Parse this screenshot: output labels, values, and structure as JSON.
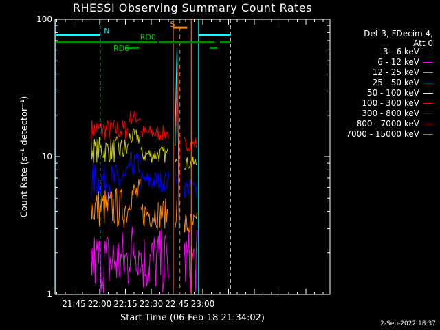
{
  "chart_data": {
    "type": "line",
    "title": "RHESSI Observing Summary Count Rates",
    "xlabel": "Start Time (06-Feb-18 21:34:02)",
    "ylabel": "Count Rate (s⁻¹ detector⁻¹)",
    "yscale": "log",
    "ylim": [
      1,
      100
    ],
    "yticks": [
      "1",
      "10",
      "100"
    ],
    "xlim_minutes": [
      34.0,
      194.0
    ],
    "xticks": [
      {
        "label": "21:45",
        "t": 45
      },
      {
        "label": "22:00",
        "t": 60
      },
      {
        "label": "22:15",
        "t": 75
      },
      {
        "label": "22:30",
        "t": 90
      },
      {
        "label": "22:45",
        "t": 105
      },
      {
        "label": "23:00",
        "t": 120
      }
    ],
    "legend_header": [
      "Det 3, FDecim 4,",
      "Att 0"
    ],
    "series": [
      {
        "name": "3 - 6 keV",
        "color": "#ffffff"
      },
      {
        "name": "6 - 12 keV",
        "color": "#ff00ff"
      },
      {
        "name": "12 - 25 keV",
        "color": "#00ff00"
      },
      {
        "name": "25 - 50 keV",
        "color": "#00ffff"
      },
      {
        "name": "50 - 100 keV",
        "color": "#ffff00"
      },
      {
        "name": "100 - 300 keV",
        "color": "#ff0000"
      },
      {
        "name": "300 - 800 keV",
        "color": "#0000ff"
      },
      {
        "name": "800 - 7000 keV",
        "color": "#ff8800"
      },
      {
        "name": "7000 - 15000 keV",
        "color": "#aa7700"
      }
    ],
    "bands": [
      {
        "color": "#ff0000",
        "segments": [
          [
            55,
            77,
            13,
            19
          ],
          [
            77,
            84,
            17,
            22
          ],
          [
            84,
            100,
            13,
            17
          ],
          [
            104,
            105,
            12,
            18
          ],
          [
            109,
            117,
            11,
            14
          ]
        ]
      },
      {
        "color": "#cccc00",
        "segments": [
          [
            55,
            77,
            9,
            14
          ],
          [
            77,
            84,
            12,
            16
          ],
          [
            84,
            100,
            9,
            12
          ],
          [
            104,
            105,
            9,
            14
          ],
          [
            109,
            117,
            8,
            10
          ]
        ]
      },
      {
        "color": "#0000ff",
        "segments": [
          [
            55,
            77,
            5,
            9
          ],
          [
            77,
            84,
            7,
            11
          ],
          [
            84,
            100,
            5.5,
            8
          ],
          [
            104,
            105,
            6,
            10
          ],
          [
            109,
            117,
            5,
            7
          ]
        ]
      },
      {
        "color": "#ff8800",
        "segments": [
          [
            55,
            77,
            3,
            6
          ],
          [
            77,
            84,
            4,
            7
          ],
          [
            84,
            100,
            3,
            5
          ],
          [
            104,
            105,
            3,
            6
          ],
          [
            109,
            117,
            2.5,
            4
          ]
        ]
      },
      {
        "color": "#ff00ff",
        "segments": [
          [
            55,
            77,
            1,
            3
          ],
          [
            77,
            84,
            1.3,
            3.5
          ],
          [
            84,
            100,
            1,
            3
          ],
          [
            109,
            117,
            1,
            3
          ]
        ]
      }
    ],
    "spike": {
      "t": 105.3,
      "color": "#ff0000",
      "peak": 46
    },
    "spike_cyan": {
      "t": 105.0,
      "color": "#00ffff",
      "peak": 62
    },
    "markers": {
      "cyan_vlines": [
        34.5,
        60.3,
        117.5,
        136.2
      ],
      "orange_vlines": [
        102.8,
        106.7,
        113.3
      ],
      "cyan_bars": [
        {
          "t0": 34.5,
          "t1": 60.3,
          "y": 77,
          "label": ""
        },
        {
          "t0": 117.5,
          "t1": 136.2,
          "y": 77,
          "label": ""
        }
      ],
      "n_label": {
        "t": 62.5,
        "y": 79,
        "text": "N"
      },
      "s_bar": {
        "t0": 103,
        "t1": 111,
        "y": 87,
        "label": "S"
      },
      "green_bars": [
        {
          "t0": 34.5,
          "t1": 93.5,
          "y": 68
        },
        {
          "t0": 94.5,
          "t1": 127,
          "y": 68
        },
        {
          "t0": 130,
          "t1": 136.2,
          "y": 68
        },
        {
          "t0": 75,
          "t1": 83,
          "y": 62
        },
        {
          "t0": 124,
          "t1": 128.5,
          "y": 62
        }
      ],
      "rd0_label": {
        "t": 83.5,
        "y": 71,
        "text": "RD0"
      },
      "rd6_label": {
        "t": 68,
        "y": 59,
        "text": "RD6"
      }
    },
    "grid": false,
    "legend_position": "right"
  },
  "stamp": "2-Sep-2022 18:37"
}
